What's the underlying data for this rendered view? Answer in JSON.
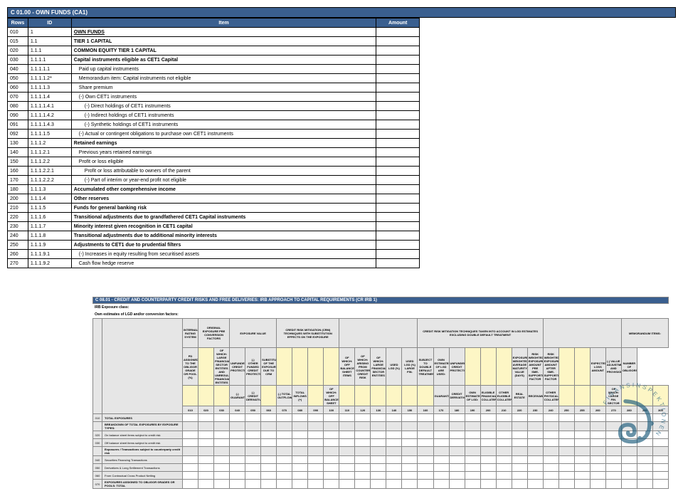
{
  "ca1": {
    "title": "C 01.00 - OWN FUNDS (CA1)",
    "headers": {
      "rows": "Rows",
      "id": "ID",
      "item": "Item",
      "amount": "Amount"
    },
    "rows": [
      {
        "r": "010",
        "id": "1",
        "item": "OWN FUNDS",
        "bold": true,
        "underline": true,
        "indent": 0
      },
      {
        "r": "015",
        "id": "1.1",
        "item": "TIER 1 CAPITAL",
        "bold": true,
        "indent": 0
      },
      {
        "r": "020",
        "id": "1.1.1",
        "item": "COMMON EQUITY TIER 1 CAPITAL",
        "bold": true,
        "indent": 0
      },
      {
        "r": "030",
        "id": "1.1.1.1",
        "item": "Capital instruments eligible as CET1 Capital",
        "bold": true,
        "indent": 0
      },
      {
        "r": "040",
        "id": "1.1.1.1.1",
        "item": "Paid up capital instruments",
        "indent": 1
      },
      {
        "r": "050",
        "id": "1.1.1.1.2*",
        "item": "Memorandum item: Capital instruments not eligible",
        "indent": 1
      },
      {
        "r": "060",
        "id": "1.1.1.1.3",
        "item": "Share premium",
        "indent": 1
      },
      {
        "r": "070",
        "id": "1.1.1.1.4",
        "item": "(-) Own CET1 instruments",
        "indent": 1
      },
      {
        "r": "080",
        "id": "1.1.1.1.4.1",
        "item": "(-) Direct holdings of CET1 instruments",
        "indent": 2
      },
      {
        "r": "090",
        "id": "1.1.1.1.4.2",
        "item": "(-) Indirect holdings of CET1 instruments",
        "indent": 2
      },
      {
        "r": "091",
        "id": "1.1.1.1.4.3",
        "item": "(-) Synthetic holdings of CET1 instruments",
        "indent": 2
      },
      {
        "r": "092",
        "id": "1.1.1.1.5",
        "item": "(-) Actual or contingent obligations to purchase own CET1 instruments",
        "indent": 1
      },
      {
        "r": "130",
        "id": "1.1.1.2",
        "item": "Retained earnings",
        "bold": true,
        "indent": 0
      },
      {
        "r": "140",
        "id": "1.1.1.2.1",
        "item": "Previous years retained earnings",
        "indent": 1
      },
      {
        "r": "150",
        "id": "1.1.1.2.2",
        "item": "Profit or loss eligible",
        "indent": 1
      },
      {
        "r": "160",
        "id": "1.1.1.2.2.1",
        "item": "Profit or loss attributable to owners of the parent",
        "indent": 2
      },
      {
        "r": "170",
        "id": "1.1.1.2.2.2",
        "item": "(-) Part of interim or year-end profit not eligible",
        "indent": 2
      },
      {
        "r": "180",
        "id": "1.1.1.3",
        "item": "Accumulated other comprehensive income",
        "bold": true,
        "indent": 0
      },
      {
        "r": "200",
        "id": "1.1.1.4",
        "item": "Other reserves",
        "bold": true,
        "indent": 0
      },
      {
        "r": "210",
        "id": "1.1.1.5",
        "item": "Funds for general banking risk",
        "bold": true,
        "indent": 0
      },
      {
        "r": "220",
        "id": "1.1.1.6",
        "item": "Transitional adjustments due to grandfathered CET1 Capital instruments",
        "bold": true,
        "indent": 0
      },
      {
        "r": "230",
        "id": "1.1.1.7",
        "item": "Minority interest given recognition in CET1 capital",
        "bold": true,
        "indent": 0
      },
      {
        "r": "240",
        "id": "1.1.1.8",
        "item": "Transitional adjustments due to additional minority interests",
        "bold": true,
        "indent": 0
      },
      {
        "r": "250",
        "id": "1.1.1.9",
        "item": "Adjustments to CET1 due to prudential filters",
        "bold": true,
        "indent": 0
      },
      {
        "r": "260",
        "id": "1.1.1.9.1",
        "item": "(-) Increases  in equity resulting from securitised assets",
        "indent": 1
      },
      {
        "r": "270",
        "id": "1.1.1.9.2",
        "item": "Cash flow hedge reserve",
        "indent": 1
      }
    ]
  },
  "crirb": {
    "title": "C 08.01 - CREDIT AND COUNTERPARTY CREDIT RISKS AND FREE DELIVERIES: IRB APPROACH TO CAPITAL REQUIREMENTS (CR IRB 1)",
    "sub1": "IRB Exposure class:",
    "sub2": "Own estimates of LGD and/or conversion factors:",
    "group_headers": [
      "INTERNAL RATING SYSTEM",
      "ORIGINAL EXPOSURE PRE CONVERSION FACTORS",
      "EXPOSURE VALUE",
      "CREDIT RISK MITIGATION (CRM) TECHNIQUES WITH SUBSTITUTION EFFECTS ON THE EXPOSURE",
      "",
      "CREDIT RISK MITIGATION TECHNIQUES TAKEN INTO ACCOUNT IN LGD ESTIMATES EXCLUDING DOUBLE DEFAULT TREATMENT",
      "",
      "MEMORANDUM ITEMS:"
    ],
    "col_headers": [
      "PD ASSIGNED TO THE OBLIGOR GRADE OR POOL (%)",
      "",
      "OF WHICH: LARGE FINANCIAL SECTOR ENTITIES AND UNREGULATED FINANCIAL ENTITIES",
      "UNFUNDED CREDIT PROTECTION",
      "(-) OTHER FUNDED CREDIT PROTECTION",
      "SUBSTITUTION OF THE EXPOSURE DUE TO CRM",
      "",
      "",
      "",
      "",
      "OF WHICH: OFF BALANCE SHEET ITEMS",
      "OF WHICH: ARISING FROM COUNTERPARTY CREDIT RISK",
      "OF WHICH: LARGE FINANCIAL SECTOR ENTITIES",
      "USED LGD (%)",
      "USED LGD (%) LARGE FIN.",
      "SUBJECT TO DOUBLE DEFAULT TREATMENT",
      "OWN ESTIMATES OF LGD ARE USED:",
      "UNFUNDED CREDIT PROTECTION",
      "",
      "",
      "",
      "EXPOSURE WEIGHTED AVERAGE MATURITY VALUE (DAYS)",
      "RISK WEIGHTED EXPOSURE AMOUNT PRE SME-SUPPORTING FACTOR",
      "RISK WEIGHTED EXPOSURE AMOUNT AFTER SME-SUPPORTING FACTOR",
      "",
      "",
      "EXPECTED LOSS AMOUNT",
      "(-) VALUE ADJUSTMENTS AND PROVISIONS",
      "NUMBER OF OBLIGORS"
    ],
    "sub_col_headers": [
      "",
      "",
      "",
      "(-) GUARANTEES",
      "(-) CREDIT DERIVATIVES",
      "",
      "(-) TOTAL OUTFLOWS",
      "TOTAL INFLOWS (+)",
      "",
      "OF WHICH: OFF BALANCE SHEET",
      "",
      "",
      "",
      "",
      "",
      "",
      "GUARANTEES",
      "CREDIT DERIVATIVES",
      "OWN ESTIMATES OF LGD:",
      "ELIGIBLE FINANCIAL COLLATERAL",
      "OTHER ELIGIBLE COLLATERAL",
      "REAL ESTATE",
      "RECEIVABLES",
      "OTHER PHYSICAL COLLATERAL",
      "",
      "",
      "",
      "OF WHICH: LARGE FIN. SECTOR",
      "",
      "",
      ""
    ],
    "col_nums": [
      "010",
      "020",
      "030",
      "040",
      "050",
      "060",
      "070",
      "080",
      "090",
      "100",
      "110",
      "120",
      "130",
      "140",
      "150",
      "160",
      "170",
      "180",
      "190",
      "200",
      "210",
      "220",
      "230",
      "240",
      "250",
      "255",
      "260",
      "270",
      "280",
      "290",
      "300"
    ],
    "rows": [
      {
        "n": "010",
        "label": "TOTAL EXPOSURES",
        "bold": true
      },
      {
        "n": "",
        "label": "BREAKDOWN OF TOTAL EXPOSURES BY EXPOSURE TYPES:",
        "bold": true,
        "sub": true
      },
      {
        "n": "020",
        "label": "On balance sheet items subject to credit risk"
      },
      {
        "n": "030",
        "label": "Off balance sheet items subject to credit risk"
      },
      {
        "n": "",
        "label": "Exposures / Transactions subject to counterparty credit risk",
        "bold": true,
        "sub": true
      },
      {
        "n": "040",
        "label": "Securities Financing Transactions"
      },
      {
        "n": "050",
        "label": "Derivatives & Long Settlement Transactions"
      },
      {
        "n": "060",
        "label": "From Contractual Cross Product Netting"
      },
      {
        "n": "070",
        "label": "EXPOSURES ASSIGNED TO OBLIGOR GRADES OR POOLS: TOTAL",
        "bold": true
      }
    ]
  },
  "colors": {
    "header_bg": "#3a5f8f",
    "grey": "#e6e6e6",
    "yellow": "#fdf6c5"
  },
  "watermark": {
    "name": "FINANSINSPEKTIONEN"
  }
}
